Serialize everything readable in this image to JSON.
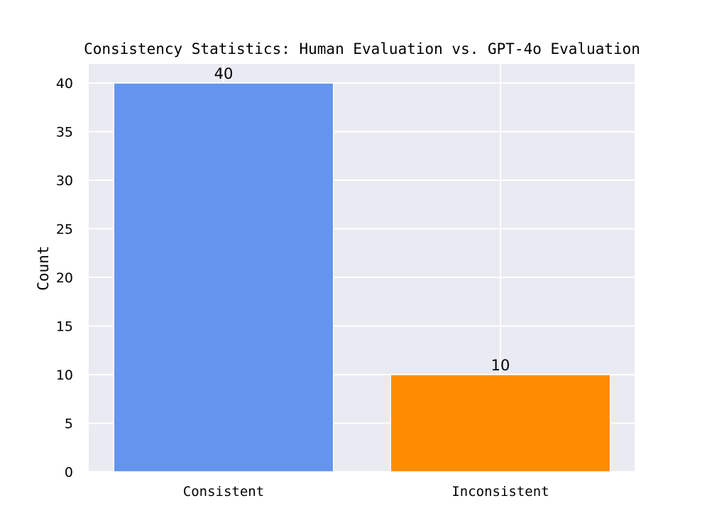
{
  "chart_data": {
    "type": "bar",
    "title": "Consistency Statistics: Human Evaluation vs. GPT-4o Evaluation",
    "xlabel": "",
    "ylabel": "Count",
    "categories": [
      "Consistent",
      "Inconsistent"
    ],
    "values": [
      40,
      10
    ],
    "data_labels": [
      "40",
      "10"
    ],
    "bar_colors": [
      "#6495ED",
      "#FF8C00"
    ],
    "ylim": [
      0,
      42
    ],
    "yticks": [
      0,
      5,
      10,
      15,
      20,
      25,
      30,
      35,
      40
    ],
    "ytick_labels": [
      "0",
      "5",
      "10",
      "15",
      "20",
      "25",
      "30",
      "35",
      "40"
    ],
    "grid": true,
    "legend": "none",
    "background_color": "#EAEAF2",
    "grid_color": "#FFFFFF"
  }
}
